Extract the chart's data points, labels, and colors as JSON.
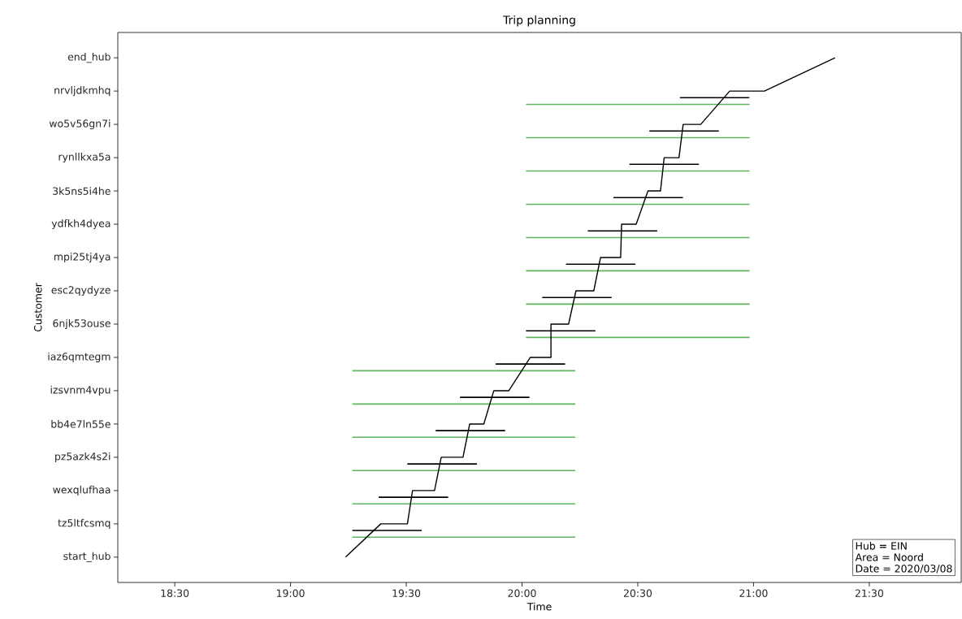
{
  "chart_data": {
    "type": "bar",
    "orientation": "horizontal",
    "title": "Trip planning",
    "xlabel": "Time",
    "ylabel": "Customer",
    "categories": [
      "end_hub",
      "nrvljdkmhq",
      "wo5v56gn7i",
      "rynllkxa5a",
      "3k5ns5i4he",
      "ydfkh4dyea",
      "mpi25tj4ya",
      "esc2qydyze",
      "6njk53ouse",
      "iaz6qmtegm",
      "izsvnm4vpu",
      "bb4e7ln55e",
      "pz5azk4s2i",
      "wexqlufhaa",
      "tz5ltfcsmq",
      "start_hub"
    ],
    "xlim": [
      18.254,
      21.897
    ],
    "xticks": [
      {
        "value": 18.5,
        "label": "18:30"
      },
      {
        "value": 19.0,
        "label": "19:00"
      },
      {
        "value": 19.5,
        "label": "19:30"
      },
      {
        "value": 20.0,
        "label": "20:00"
      },
      {
        "value": 20.5,
        "label": "20:30"
      },
      {
        "value": 21.0,
        "label": "21:00"
      },
      {
        "value": 21.5,
        "label": "21:30"
      }
    ],
    "grid": false,
    "annotations": [
      "Hub = EIN",
      "Area = Noord",
      "Date = 2020/03/08"
    ],
    "series": [
      {
        "color": "#000000",
        "line_style": "dashed",
        "base": [
          null,
          20.682,
          20.55,
          20.464,
          20.395,
          20.284,
          20.19,
          20.087,
          20.017,
          19.886,
          19.732,
          19.627,
          19.505,
          19.381,
          19.267,
          null
        ],
        "values": [
          null,
          0.3,
          0.3,
          0.3,
          0.3,
          0.3,
          0.3,
          0.3,
          0.3,
          0.3,
          0.3,
          0.3,
          0.3,
          0.3,
          0.3,
          null
        ]
      },
      {
        "color": "#5fb55f",
        "line_style": "dashed",
        "base": [
          null,
          20.017,
          20.017,
          20.017,
          20.017,
          20.017,
          20.017,
          20.017,
          20.017,
          19.267,
          19.267,
          19.267,
          19.267,
          19.267,
          19.267,
          null
        ],
        "values": [
          null,
          0.966,
          0.966,
          0.966,
          0.966,
          0.966,
          0.966,
          0.966,
          0.966,
          0.963,
          0.963,
          0.963,
          0.963,
          0.963,
          0.963,
          null
        ]
      },
      {
        "type": "line",
        "color": "#000000",
        "line_style": "solid",
        "x": [
          "start_hub",
          "tz5ltfcsmq",
          "tz5ltfcsmq",
          "wexqlufhaa",
          "wexqlufhaa",
          "pz5azk4s2i",
          "pz5azk4s2i",
          "bb4e7ln55e",
          "bb4e7ln55e",
          "izsvnm4vpu",
          "izsvnm4vpu",
          "iaz6qmtegm",
          "iaz6qmtegm",
          "6njk53ouse",
          "6njk53ouse",
          "esc2qydyze",
          "esc2qydyze",
          "mpi25tj4ya",
          "mpi25tj4ya",
          "ydfkh4dyea",
          "ydfkh4dyea",
          "3k5ns5i4he",
          "3k5ns5i4he",
          "rynllkxa5a",
          "rynllkxa5a",
          "wo5v56gn7i",
          "wo5v56gn7i",
          "nrvljdkmhq",
          "nrvljdkmhq",
          "end_hub"
        ],
        "values": [
          19.238,
          19.39,
          19.505,
          19.527,
          19.622,
          19.651,
          19.745,
          19.774,
          19.835,
          19.878,
          19.943,
          20.036,
          20.125,
          20.125,
          20.201,
          20.233,
          20.31,
          20.339,
          20.426,
          20.43,
          20.493,
          20.544,
          20.598,
          20.614,
          20.678,
          20.696,
          20.772,
          20.897,
          21.047,
          21.352
        ]
      }
    ]
  }
}
